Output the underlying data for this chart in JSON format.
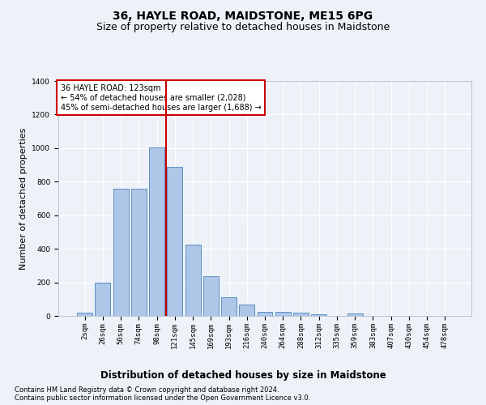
{
  "title": "36, HAYLE ROAD, MAIDSTONE, ME15 6PG",
  "subtitle": "Size of property relative to detached houses in Maidstone",
  "xlabel": "Distribution of detached houses by size in Maidstone",
  "ylabel": "Number of detached properties",
  "categories": [
    "2sqm",
    "26sqm",
    "50sqm",
    "74sqm",
    "98sqm",
    "121sqm",
    "145sqm",
    "169sqm",
    "193sqm",
    "216sqm",
    "240sqm",
    "264sqm",
    "288sqm",
    "312sqm",
    "335sqm",
    "359sqm",
    "383sqm",
    "407sqm",
    "430sqm",
    "454sqm",
    "478sqm"
  ],
  "values": [
    20,
    200,
    760,
    760,
    1005,
    890,
    425,
    235,
    110,
    70,
    25,
    25,
    20,
    10,
    0,
    15,
    0,
    0,
    0,
    0,
    0
  ],
  "bar_color": "#aec6e8",
  "bar_edge_color": "#5a8fc3",
  "vline_x": 4.5,
  "vline_color": "#cc0000",
  "annotation_title": "36 HAYLE ROAD: 123sqm",
  "annotation_line1": "← 54% of detached houses are smaller (2,028)",
  "annotation_line2": "45% of semi-detached houses are larger (1,688) →",
  "annotation_box_color": "#ffffff",
  "annotation_box_edge": "#cc0000",
  "ylim": [
    0,
    1400
  ],
  "yticks": [
    0,
    200,
    400,
    600,
    800,
    1000,
    1200,
    1400
  ],
  "bg_color": "#eef2f8",
  "plot_bg_color": "#eef2f8",
  "footer_line1": "Contains HM Land Registry data © Crown copyright and database right 2024.",
  "footer_line2": "Contains public sector information licensed under the Open Government Licence v3.0.",
  "title_fontsize": 10,
  "subtitle_fontsize": 9,
  "ylabel_fontsize": 8,
  "xlabel_fontsize": 8.5,
  "tick_fontsize": 6.5,
  "annotation_fontsize": 7,
  "footer_fontsize": 6
}
